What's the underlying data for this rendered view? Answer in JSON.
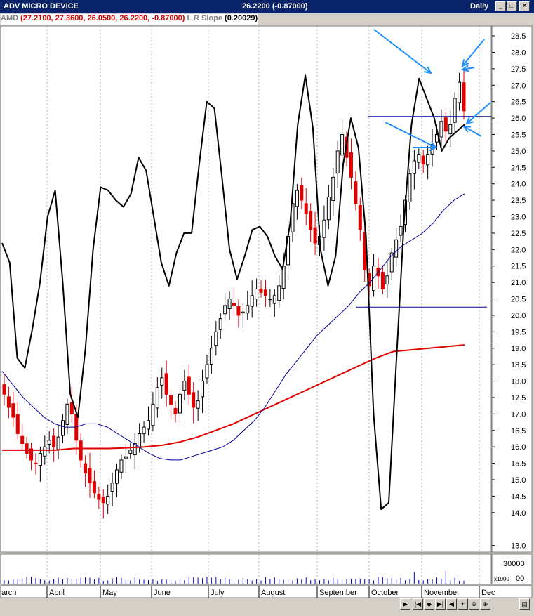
{
  "window": {
    "title": "ADV MICRO DEVICE",
    "price_display": "26.2200 (-0.87000)",
    "period": "Daily"
  },
  "legend": {
    "symbol": "AMD",
    "ohlc": "(27.2100, 27.3600, 26.0500, 26.2200, -0.87000)",
    "indicator_label": "L R Slope",
    "indicator_value": "(0.20029)"
  },
  "colors": {
    "up_candle": "#000000",
    "down_candle": "#e00000",
    "ma_short": "#0000a0",
    "ma_long": "#e00000",
    "lr_slope": "#000000",
    "annotation": "#1e90ff"
  },
  "chart_data": {
    "type": "line",
    "x_axis": [
      "arch",
      "April",
      "May",
      "June",
      "July",
      "August",
      "September",
      "October",
      "November",
      "Dec"
    ],
    "price_axis": {
      "ylim": [
        12.8,
        28.8
      ],
      "ticks": [
        "28.5",
        "28.0",
        "27.5",
        "27.0",
        "26.5",
        "26.0",
        "25.5",
        "25.0",
        "24.5",
        "24.0",
        "23.5",
        "23.0",
        "22.5",
        "22.0",
        "21.5",
        "21.0",
        "20.5",
        "20.0",
        "19.5",
        "19.0",
        "18.5",
        "18.0",
        "17.5",
        "17.0",
        "16.5",
        "16.0",
        "15.5",
        "15.0",
        "14.5",
        "14.0",
        "13.0"
      ]
    },
    "volume_axis": {
      "ticks": [
        "30000",
        "00"
      ],
      "multiplier": "x1000"
    },
    "horizontal_lines": [
      26.05,
      20.25
    ],
    "candle_closes": [
      17.6,
      17.2,
      16.9,
      16.4,
      16.1,
      15.8,
      15.6,
      15.5,
      15.8,
      16.0,
      16.2,
      16.0,
      16.3,
      16.8,
      17.3,
      17.0,
      16.2,
      15.6,
      15.2,
      14.9,
      14.6,
      14.4,
      14.3,
      14.5,
      14.9,
      15.3,
      15.6,
      15.7,
      15.9,
      16.1,
      16.4,
      16.6,
      16.8,
      17.3,
      17.8,
      18.1,
      17.6,
      17.3,
      17.0,
      17.6,
      18.0,
      17.6,
      17.2,
      17.4,
      18.0,
      18.5,
      19.0,
      19.5,
      19.9,
      20.3,
      20.5,
      20.3,
      20.0,
      20.1,
      20.3,
      20.6,
      20.8,
      20.7,
      20.6,
      20.5,
      20.6,
      20.9,
      21.5,
      22.4,
      23.4,
      23.8,
      23.5,
      23.1,
      22.6,
      22.2,
      22.4,
      22.9,
      23.6,
      24.2,
      25.0,
      25.5,
      24.8,
      24.2,
      23.4,
      22.6,
      21.4,
      20.9,
      21.5,
      21.2,
      20.8,
      21.2,
      21.9,
      22.3,
      22.7,
      23.5,
      24.3,
      24.7,
      24.9,
      24.6,
      24.9,
      25.2,
      25.5,
      25.9,
      25.6,
      25.8,
      26.6,
      27.09,
      26.22
    ],
    "ma_short": [
      18.3,
      17.9,
      17.5,
      17.2,
      16.9,
      16.7,
      16.6,
      16.6,
      16.7,
      16.7,
      16.6,
      16.4,
      16.2,
      16.0,
      15.8,
      15.65,
      15.6,
      15.6,
      15.7,
      15.8,
      15.9,
      16.0,
      16.2,
      16.5,
      16.8,
      17.2,
      17.7,
      18.2,
      18.6,
      19.0,
      19.4,
      19.7,
      20.0,
      20.3,
      20.7,
      21.0,
      21.4,
      21.8,
      22.1,
      22.3,
      22.5,
      22.8,
      23.2,
      23.5,
      23.7
    ],
    "ma_long": [
      15.9,
      15.9,
      15.9,
      15.9,
      15.95,
      15.95,
      15.95,
      15.97,
      16.0,
      16.05,
      16.15,
      16.3,
      16.5,
      16.7,
      16.95,
      17.2,
      17.45,
      17.7,
      17.95,
      18.2,
      18.45,
      18.7,
      18.9,
      18.95,
      19.0,
      19.05,
      19.1
    ],
    "lr_slope": [
      22.2,
      21.6,
      18.7,
      18.4,
      19.6,
      21.0,
      23.0,
      23.8,
      21.0,
      17.6,
      16.9,
      19.0,
      22.0,
      23.9,
      23.8,
      23.5,
      23.3,
      23.7,
      24.8,
      24.4,
      23.0,
      21.6,
      20.9,
      21.9,
      22.5,
      22.5,
      24.6,
      26.5,
      26.3,
      24.2,
      22.0,
      21.1,
      21.8,
      22.6,
      22.7,
      22.4,
      21.8,
      21.4,
      22.8,
      25.8,
      27.3,
      25.7,
      22.0,
      20.9,
      21.8,
      24.6,
      26.0,
      25.1,
      22.4,
      17.0,
      14.1,
      14.3,
      18.6,
      22.8,
      25.8,
      27.2,
      26.6,
      26.0,
      25.0,
      25.4,
      25.6,
      25.8
    ]
  }
}
